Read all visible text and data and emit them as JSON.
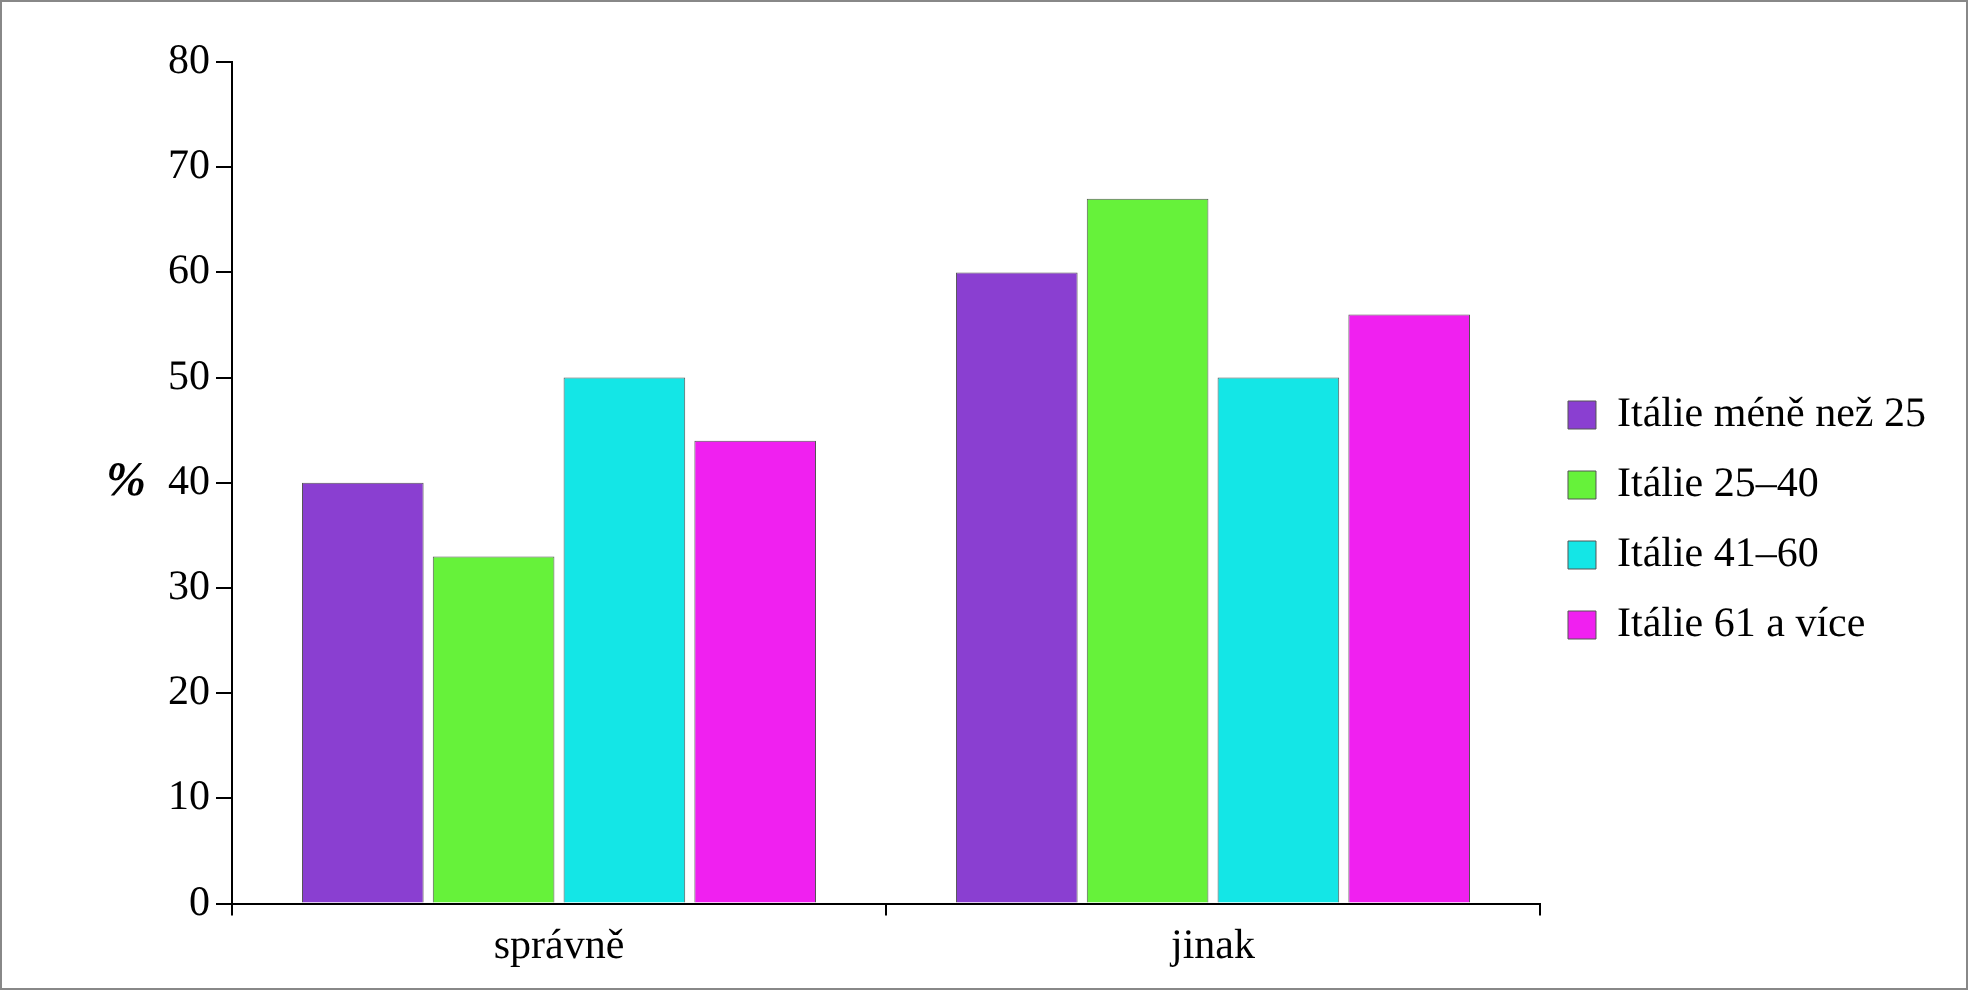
{
  "chart_data": {
    "type": "bar",
    "ylabel": "%",
    "categories": [
      "správně",
      "jinak"
    ],
    "series": [
      {
        "name": "Itálie méně než 25",
        "color": "#8a3fd1",
        "values": [
          40,
          60
        ]
      },
      {
        "name": "Itálie 25–40",
        "color": "#66f23a",
        "values": [
          33,
          67
        ]
      },
      {
        "name": "Itálie 41–60",
        "color": "#14e6e6",
        "values": [
          50,
          50
        ]
      },
      {
        "name": "Itálie 61 a více",
        "color": "#f020f0",
        "values": [
          44,
          56
        ]
      }
    ],
    "ylim": [
      0,
      80
    ],
    "yticks": [
      0,
      10,
      20,
      30,
      40,
      50,
      60,
      70,
      80
    ],
    "grid": false,
    "legend": "right"
  }
}
